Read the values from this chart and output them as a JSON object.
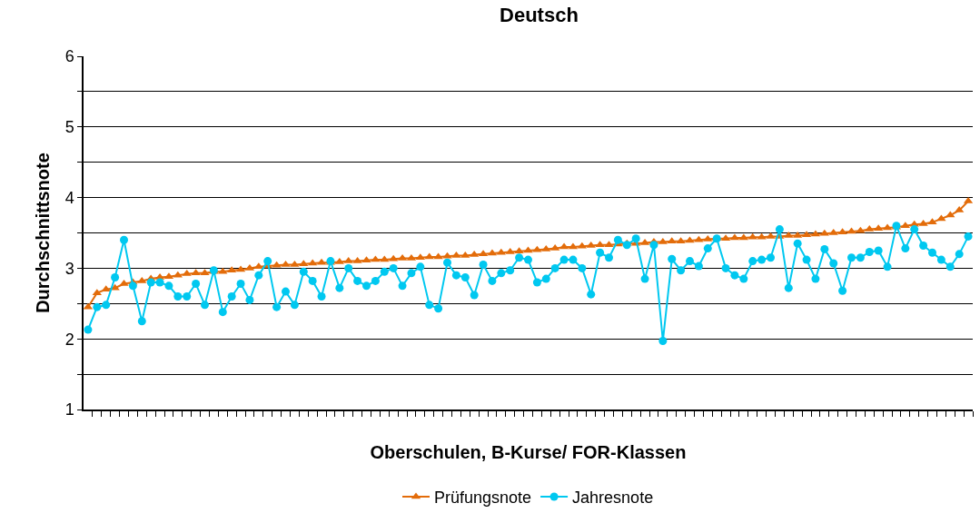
{
  "chart_data": {
    "type": "line",
    "title": "Deutsch",
    "xlabel": "Oberschulen, B-Kurse/ FOR-Klassen",
    "ylabel": "Durchschnittsnote",
    "categories": [
      null,
      null,
      null,
      null,
      null,
      null,
      null,
      null,
      null,
      null,
      null,
      null,
      null,
      null,
      null,
      null,
      null,
      null,
      null,
      null,
      null,
      null,
      null,
      null,
      null,
      null,
      null,
      null,
      null,
      null,
      null,
      null,
      null,
      null,
      null,
      null,
      null,
      null,
      null,
      null,
      null,
      null,
      null,
      null,
      null,
      null,
      null,
      null,
      null,
      null,
      null,
      null,
      null,
      null,
      null,
      null,
      null,
      null,
      null,
      null,
      null,
      null,
      null,
      null,
      null,
      null,
      null,
      null,
      null,
      null,
      null,
      null,
      null,
      null,
      null,
      null,
      null,
      null,
      null,
      null,
      null,
      null,
      null,
      null,
      null,
      null,
      null,
      null,
      null,
      null,
      null,
      null,
      null,
      null,
      null,
      null,
      null,
      null,
      null
    ],
    "series": [
      {
        "name": "Prüfungsnote",
        "color": "#e36c0a",
        "marker": "triangle",
        "values": [
          2.45,
          2.65,
          2.7,
          2.72,
          2.78,
          2.8,
          2.82,
          2.85,
          2.87,
          2.88,
          2.9,
          2.92,
          2.93,
          2.93,
          2.95,
          2.95,
          2.97,
          2.98,
          3.0,
          3.02,
          3.03,
          3.04,
          3.05,
          3.05,
          3.06,
          3.07,
          3.08,
          3.08,
          3.09,
          3.1,
          3.1,
          3.11,
          3.12,
          3.12,
          3.13,
          3.14,
          3.14,
          3.15,
          3.16,
          3.16,
          3.17,
          3.18,
          3.18,
          3.19,
          3.2,
          3.21,
          3.22,
          3.23,
          3.24,
          3.25,
          3.26,
          3.27,
          3.28,
          3.3,
          3.3,
          3.31,
          3.32,
          3.33,
          3.33,
          3.34,
          3.35,
          3.35,
          3.36,
          3.37,
          3.37,
          3.38,
          3.38,
          3.39,
          3.4,
          3.41,
          3.42,
          3.42,
          3.43,
          3.43,
          3.44,
          3.44,
          3.45,
          3.45,
          3.46,
          3.46,
          3.47,
          3.48,
          3.49,
          3.5,
          3.51,
          3.52,
          3.53,
          3.55,
          3.56,
          3.57,
          3.58,
          3.6,
          3.62,
          3.63,
          3.65,
          3.7,
          3.75,
          3.82,
          3.95
        ]
      },
      {
        "name": "Jahresnote",
        "color": "#00c8f0",
        "marker": "circle",
        "values": [
          2.13,
          2.45,
          2.48,
          2.87,
          3.4,
          2.75,
          2.25,
          2.8,
          2.8,
          2.75,
          2.6,
          2.6,
          2.78,
          2.48,
          2.97,
          2.38,
          2.6,
          2.78,
          2.55,
          2.9,
          3.1,
          2.45,
          2.67,
          2.48,
          2.95,
          2.82,
          2.6,
          3.1,
          2.72,
          3.0,
          2.82,
          2.75,
          2.82,
          2.95,
          3.0,
          2.75,
          2.93,
          3.02,
          2.48,
          2.43,
          3.08,
          2.9,
          2.87,
          2.62,
          3.05,
          2.82,
          2.93,
          2.97,
          3.15,
          3.12,
          2.8,
          2.85,
          3.0,
          3.12,
          3.12,
          3.0,
          2.63,
          3.22,
          3.15,
          3.4,
          3.33,
          3.42,
          2.85,
          3.33,
          1.97,
          3.13,
          2.97,
          3.1,
          3.03,
          3.28,
          3.42,
          3.0,
          2.9,
          2.85,
          3.1,
          3.12,
          3.15,
          3.55,
          2.72,
          3.35,
          3.12,
          2.85,
          3.27,
          3.07,
          2.68,
          3.15,
          3.15,
          3.23,
          3.25,
          3.02,
          3.6,
          3.28,
          3.55,
          3.32,
          3.22,
          3.12,
          3.02,
          3.2,
          3.45
        ]
      }
    ],
    "ylim": [
      1,
      6
    ],
    "yticks": [
      1,
      {
        "value": 1.5,
        "label": null
      },
      2,
      {
        "value": 2.5,
        "label": null
      },
      3,
      {
        "value": 3.5,
        "label": null
      },
      4,
      {
        "value": 4.5,
        "label": null
      },
      5,
      {
        "value": 5.5,
        "label": null
      },
      6
    ],
    "grid": "y",
    "legend": "bottom",
    "tick_labels": "y",
    "line_style": "solid"
  }
}
